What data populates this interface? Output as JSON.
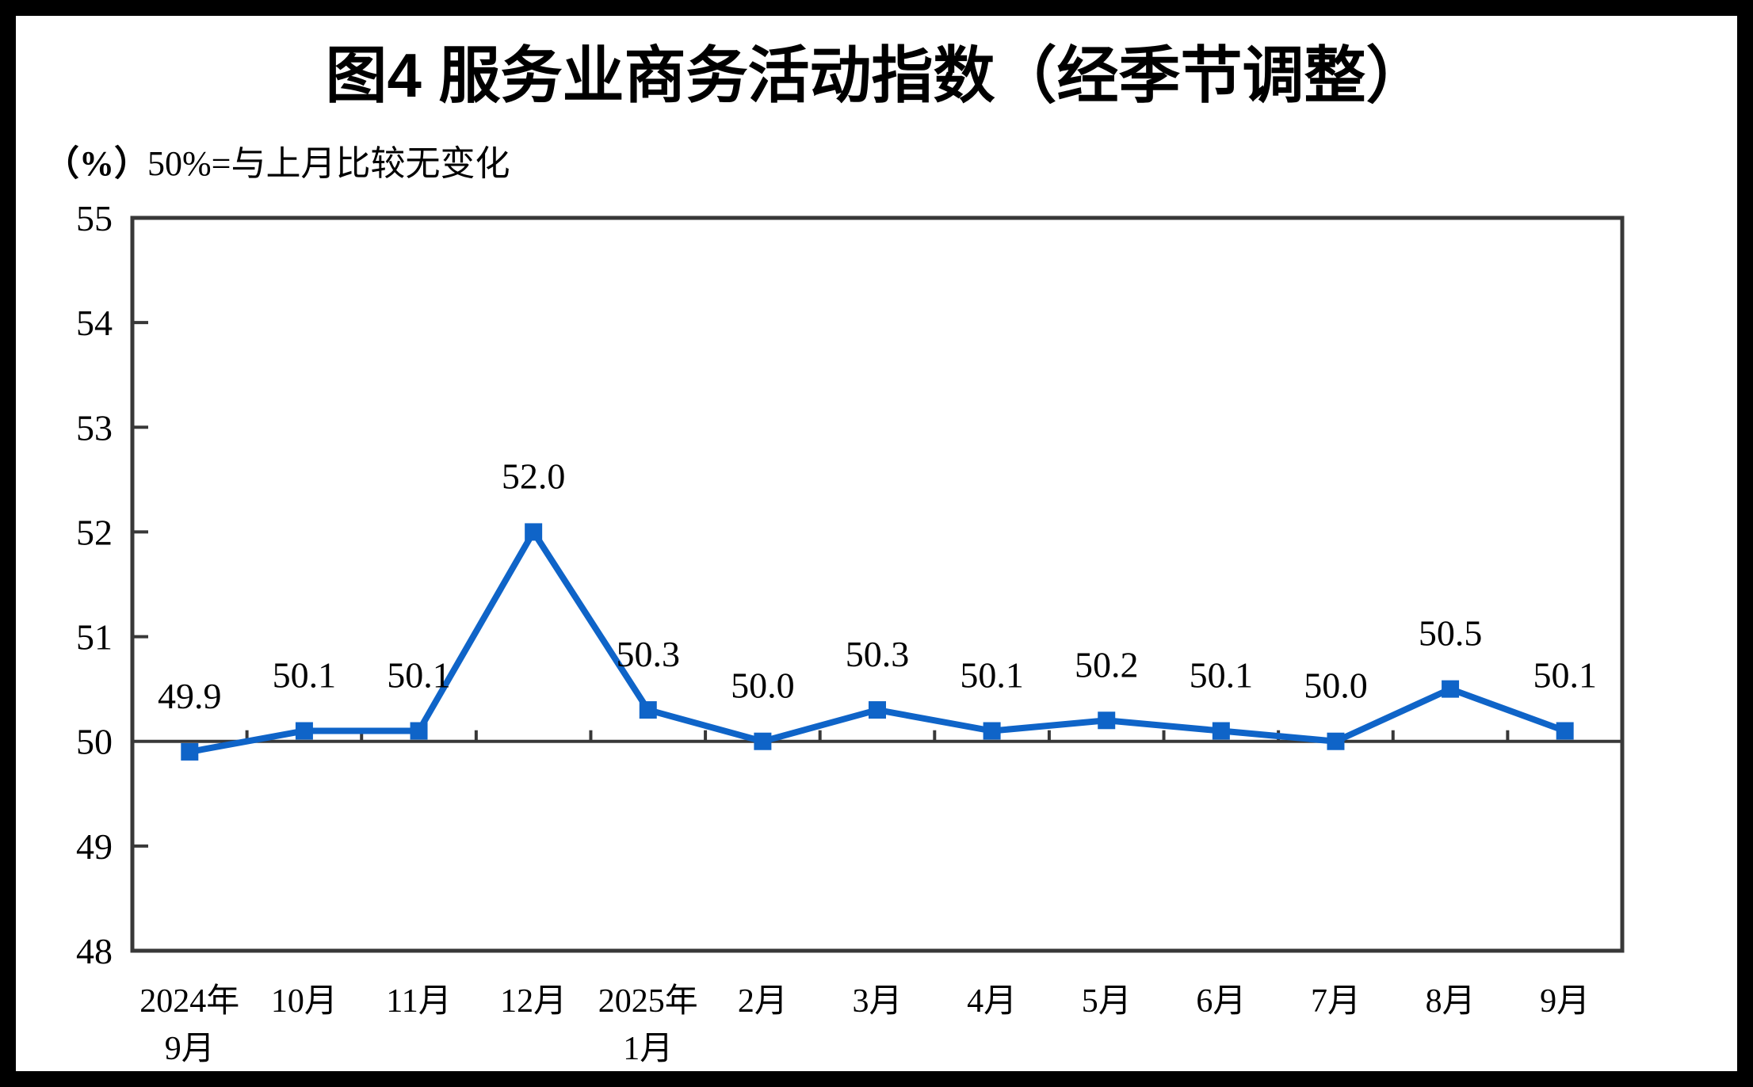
{
  "chart_data": {
    "type": "line",
    "title": "图4  服务业商务活动指数（经季节调整）",
    "ylabel": "（%）",
    "annotation": "50%=与上月比较无变化",
    "categories": [
      "2024年\n9月",
      "10月",
      "11月",
      "12月",
      "2025年\n1月",
      "2月",
      "3月",
      "4月",
      "5月",
      "6月",
      "7月",
      "8月",
      "9月"
    ],
    "values": [
      49.9,
      50.1,
      50.1,
      52.0,
      50.3,
      50.0,
      50.3,
      50.1,
      50.2,
      50.1,
      50.0,
      50.5,
      50.1
    ],
    "ylim": [
      48,
      55
    ],
    "yticks": [
      48,
      49,
      50,
      51,
      52,
      53,
      54,
      55
    ],
    "reference_line": 50,
    "grid": false,
    "legend": "none",
    "marker": "square",
    "colors": {
      "series": "#0F64C8",
      "axis": "#383838",
      "text": "#000000",
      "frame": "#000000",
      "background": "#FFFFFF"
    }
  }
}
